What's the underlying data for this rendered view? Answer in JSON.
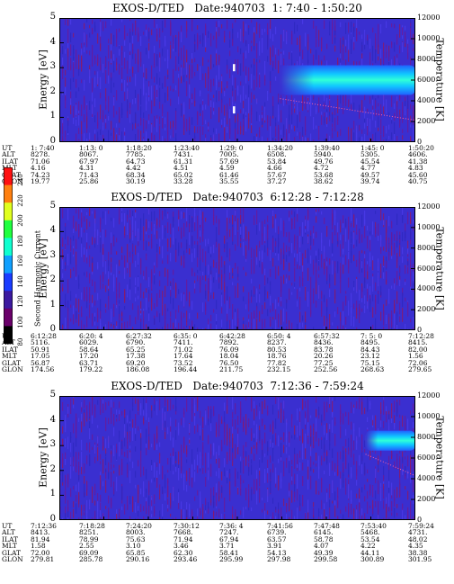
{
  "chart_data": [
    {
      "type": "heatmap",
      "title": "EXOS-D/TED   Date:940703  1: 7:40 - 1:50:20",
      "ylabel": "Energy [eV]",
      "y2label": "Temperature [K]",
      "yticks": [
        "0",
        "1",
        "2",
        "3",
        "4",
        "5"
      ],
      "y2ticks": [
        "0",
        "2000",
        "4000",
        "6000",
        "8000",
        "10000",
        "12000"
      ],
      "row_labels": [
        "UT",
        "ALT",
        "ILAT",
        "MLT",
        "GLAT",
        "GLON"
      ],
      "columns": [
        [
          "1: 7:40",
          "8278.",
          "71.06",
          "4.16",
          "74.23",
          "19.77"
        ],
        [
          "1:13: 0",
          "8067.",
          "67.97",
          "4.31",
          "71.43",
          "25.86"
        ],
        [
          "1:18:20",
          "7785.",
          "64.73",
          "4.42",
          "68.34",
          "30.19"
        ],
        [
          "1:23:40",
          "7431.",
          "61.31",
          "4.51",
          "65.02",
          "33.28"
        ],
        [
          "1:29: 0",
          "7005.",
          "57.69",
          "4.59",
          "61.46",
          "35.55"
        ],
        [
          "1:34:20",
          "6508.",
          "53.84",
          "4.66",
          "57.67",
          "37.27"
        ],
        [
          "1:39:40",
          "5940.",
          "49.76",
          "4.72",
          "53.68",
          "38.62"
        ],
        [
          "1:45: 0",
          "5305.",
          "45.54",
          "4.77",
          "49.57",
          "39.74"
        ],
        [
          "1:50:20",
          "4606.",
          "41.38",
          "4.83",
          "45.60",
          "40.75"
        ]
      ],
      "features": [
        {
          "kind": "band",
          "x0": 0.62,
          "x1": 1.0,
          "e0": 1.9,
          "e1": 3.1,
          "emid": 2.5,
          "intensity": "high"
        },
        {
          "kind": "spike",
          "x": 0.49,
          "e": 3.0
        },
        {
          "kind": "spike",
          "x": 0.49,
          "e": 1.3
        }
      ]
    },
    {
      "type": "heatmap",
      "title": "EXOS-D/TED   Date:940703  6:12:28 - 7:12:28",
      "ylabel": "Energy [eV]",
      "y2label": "Temperature [K]",
      "yticks": [
        "0",
        "1",
        "2",
        "3",
        "4",
        "5"
      ],
      "y2ticks": [
        "0",
        "2000",
        "4000",
        "6000",
        "8000",
        "10000",
        "12000"
      ],
      "row_labels": [
        "UT",
        "ALT",
        "ILAT",
        "MLT",
        "GLAT",
        "GLON"
      ],
      "columns": [
        [
          "6:12:28",
          "5116.",
          "50.91",
          "17.05",
          "56.87",
          "174.56"
        ],
        [
          "6:20: 4",
          "6029.",
          "58.64",
          "17.20",
          "63.71",
          "179.22"
        ],
        [
          "6:27:32",
          "6790.",
          "65.25",
          "17.38",
          "69.20",
          "186.08"
        ],
        [
          "6:35: 0",
          "7411.",
          "71.02",
          "17.64",
          "73.52",
          "196.44"
        ],
        [
          "6:42:28",
          "7892.",
          "76.09",
          "18.04",
          "76.50",
          "211.75"
        ],
        [
          "6:50: 4",
          "8237.",
          "80.53",
          "18.76",
          "77.82",
          "232.15"
        ],
        [
          "6:57:32",
          "8436.",
          "83.78",
          "20.26",
          "77.25",
          "252.56"
        ],
        [
          "7: 5: 0",
          "8495.",
          "84.43",
          "23.12",
          "75.15",
          "268.63"
        ],
        [
          "7:12:28",
          "8415.",
          "82.00",
          "1.56",
          "72.06",
          "279.65"
        ]
      ],
      "features": []
    },
    {
      "type": "heatmap",
      "title": "EXOS-D/TED   Date:940703  7:12:36 - 7:59:24",
      "ylabel": "Energy [eV]",
      "y2label": "Temperature [K]",
      "yticks": [
        "0",
        "1",
        "2",
        "3",
        "4",
        "5"
      ],
      "y2ticks": [
        "0",
        "2000",
        "4000",
        "6000",
        "8000",
        "10000",
        "12000"
      ],
      "row_labels": [
        "UT",
        "ALT",
        "ILAT",
        "MLT",
        "GLAT",
        "GLON"
      ],
      "columns": [
        [
          "7:12:36",
          "8413.",
          "81.94",
          "1.58",
          "72.00",
          "279.81"
        ],
        [
          "7:18:28",
          "8251.",
          "78.99",
          "2.55",
          "69.09",
          "285.78"
        ],
        [
          "7:24:20",
          "8003.",
          "75.63",
          "3.10",
          "65.85",
          "290.16"
        ],
        [
          "7:30:12",
          "7668.",
          "71.94",
          "3.46",
          "62.30",
          "293.46"
        ],
        [
          "7:36: 4",
          "7247.",
          "67.94",
          "3.71",
          "58.41",
          "295.99"
        ],
        [
          "7:41:56",
          "6739.",
          "63.57",
          "3.91",
          "54.13",
          "297.98"
        ],
        [
          "7:47:48",
          "6145.",
          "58.78",
          "4.07",
          "49.39",
          "299.58"
        ],
        [
          "7:53:40",
          "5468.",
          "53.54",
          "4.22",
          "44.11",
          "300.89"
        ],
        [
          "7:59:24",
          "4731.",
          "48.02",
          "4.35",
          "38.38",
          "301.95"
        ]
      ],
      "features": [
        {
          "kind": "band",
          "x0": 0.86,
          "x1": 1.0,
          "e0": 2.8,
          "e1": 3.6,
          "emid": 3.2,
          "intensity": "high"
        }
      ]
    }
  ],
  "colorbar": {
    "label": "Second Harmonic Current",
    "ticks": [
      "80",
      "100",
      "120",
      "140",
      "160",
      "180",
      "200",
      "220",
      "240"
    ],
    "colors": [
      "#000000",
      "#6a006a",
      "#3c1aa0",
      "#1a3cff",
      "#10a0ff",
      "#10ffd0",
      "#20ff40",
      "#e0ff20",
      "#ff8010",
      "#ff1010"
    ]
  }
}
